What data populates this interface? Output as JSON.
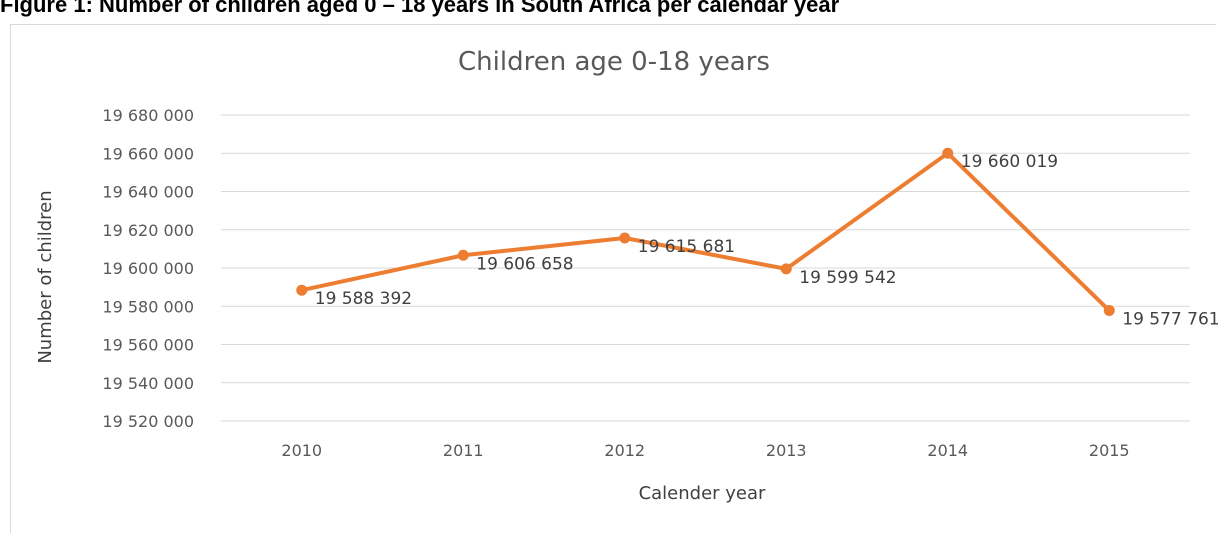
{
  "figure_caption": "Figure 1: Number of children aged 0 – 18 years in South Africa per calendar year",
  "chart_data": {
    "type": "line",
    "title": "Children age 0-18 years",
    "xlabel": "Calender year",
    "ylabel": "Number of children",
    "categories": [
      "2010",
      "2011",
      "2012",
      "2013",
      "2014",
      "2015"
    ],
    "series": [
      {
        "values": [
          19588392,
          19606658,
          19615681,
          19599542,
          19660019,
          19577761
        ],
        "data_labels": [
          "19 588 392",
          "19 606 658",
          "19 615 681",
          "19 599 542",
          "19 660 019",
          "19 577 761"
        ],
        "color": "#ED7D31"
      }
    ],
    "ylim": [
      19520000,
      19680000
    ],
    "ytick_labels": [
      "19 520 000",
      "19 540 000",
      "19 560 000",
      "19 580 000",
      "19 600 000",
      "19 620 000",
      "19 640 000",
      "19 660 000",
      "19 680 000"
    ],
    "grid": true,
    "legend": false,
    "gridline_color": "#d9d9d9"
  }
}
